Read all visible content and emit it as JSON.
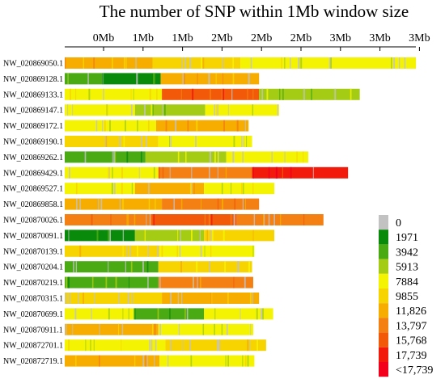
{
  "chart_data": {
    "type": "heatmap",
    "title": "The number of SNP within 1Mb window size",
    "x_tick_labels": [
      "0Mb",
      "1Mb",
      "1Mb",
      "2Mb",
      "2Mb",
      "2Mb",
      "3Mb",
      "3Mb",
      "3Mb"
    ],
    "legend": {
      "placement": "right",
      "labels": [
        "0",
        "1971",
        "3942",
        "5913",
        "7884",
        "9855",
        "11,826",
        "13,797",
        "15,768",
        "17,739",
        "<17,739"
      ],
      "colors": [
        "#c2c2c2",
        "#0a8a0a",
        "#4aaa14",
        "#a4cc14",
        "#f4f402",
        "#f7d400",
        "#f6ad00",
        "#f47f12",
        "#f25a0a",
        "#f21b0b",
        "#f2001c"
      ]
    },
    "sequences": [
      {
        "name": "NW_020869050.1",
        "end": 3.0,
        "segments": [
          [
            0,
            0.75,
            6
          ],
          [
            0.75,
            1.5,
            5
          ],
          [
            1.5,
            3.0,
            4
          ]
        ]
      },
      {
        "name": "NW_020869128.1",
        "end": 1.66,
        "segments": [
          [
            0,
            0.32,
            2
          ],
          [
            0.32,
            0.82,
            1
          ],
          [
            0.82,
            1.66,
            6
          ]
        ]
      },
      {
        "name": "NW_020869133.1",
        "end": 2.52,
        "segments": [
          [
            0,
            0.83,
            4
          ],
          [
            0.83,
            1.66,
            8
          ],
          [
            1.66,
            2.52,
            3
          ]
        ]
      },
      {
        "name": "NW_020869147.1",
        "end": 1.83,
        "segments": [
          [
            0,
            0.6,
            4
          ],
          [
            0.6,
            1.2,
            3
          ],
          [
            1.2,
            1.83,
            4
          ]
        ]
      },
      {
        "name": "NW_020869172.1",
        "end": 1.57,
        "segments": [
          [
            0,
            0.78,
            4
          ],
          [
            0.78,
            1.57,
            6
          ]
        ]
      },
      {
        "name": "NW_020869190.1",
        "end": 1.6,
        "segments": [
          [
            0,
            0.8,
            5
          ],
          [
            0.8,
            1.6,
            4
          ]
        ]
      },
      {
        "name": "NW_020869262.1",
        "end": 2.08,
        "segments": [
          [
            0,
            0.69,
            2
          ],
          [
            0.69,
            1.38,
            3
          ],
          [
            1.38,
            2.08,
            4
          ]
        ]
      },
      {
        "name": "NW_020869429.1",
        "end": 2.42,
        "segments": [
          [
            0,
            0.8,
            4
          ],
          [
            0.8,
            1.6,
            7
          ],
          [
            1.6,
            2.42,
            9
          ]
        ]
      },
      {
        "name": "NW_020869527.1",
        "end": 1.79,
        "segments": [
          [
            0,
            0.6,
            4
          ],
          [
            0.6,
            1.19,
            6
          ],
          [
            1.19,
            1.79,
            4
          ]
        ]
      },
      {
        "name": "NW_020869858.1",
        "end": 1.66,
        "segments": [
          [
            0,
            0.83,
            6
          ],
          [
            0.83,
            1.66,
            7
          ]
        ]
      },
      {
        "name": "NW_020870026.1",
        "end": 2.21,
        "segments": [
          [
            0,
            0.74,
            7
          ],
          [
            0.74,
            1.47,
            8
          ],
          [
            1.47,
            2.21,
            7
          ]
        ]
      },
      {
        "name": "NW_020870091.1",
        "end": 1.79,
        "segments": [
          [
            0,
            0.6,
            1
          ],
          [
            0.6,
            1.19,
            3
          ],
          [
            1.19,
            1.79,
            5
          ]
        ]
      },
      {
        "name": "NW_020870139.1",
        "end": 1.62,
        "segments": [
          [
            0,
            0.81,
            5
          ],
          [
            0.81,
            1.62,
            4
          ]
        ]
      },
      {
        "name": "NW_020870204.1",
        "end": 1.6,
        "segments": [
          [
            0,
            0.8,
            2
          ],
          [
            0.8,
            1.6,
            5
          ]
        ]
      },
      {
        "name": "NW_020870219.1",
        "end": 1.61,
        "segments": [
          [
            0,
            0.8,
            2
          ],
          [
            0.8,
            1.61,
            7
          ]
        ]
      },
      {
        "name": "NW_020870315.1",
        "end": 1.66,
        "segments": [
          [
            0,
            0.83,
            5
          ],
          [
            0.83,
            1.66,
            6
          ]
        ]
      },
      {
        "name": "NW_020870699.1",
        "end": 1.78,
        "segments": [
          [
            0,
            0.59,
            4
          ],
          [
            0.59,
            1.19,
            2
          ],
          [
            1.19,
            1.78,
            4
          ]
        ]
      },
      {
        "name": "NW_020870911.1",
        "end": 1.61,
        "segments": [
          [
            0,
            0.8,
            6
          ],
          [
            0.8,
            1.61,
            4
          ]
        ]
      },
      {
        "name": "NW_020872701.1",
        "end": 1.72,
        "segments": [
          [
            0,
            0.86,
            4
          ],
          [
            0.86,
            1.72,
            5
          ]
        ]
      },
      {
        "name": "NW_020872719.1",
        "end": 1.62,
        "segments": [
          [
            0,
            0.81,
            6
          ],
          [
            0.81,
            1.62,
            4
          ]
        ]
      }
    ]
  }
}
